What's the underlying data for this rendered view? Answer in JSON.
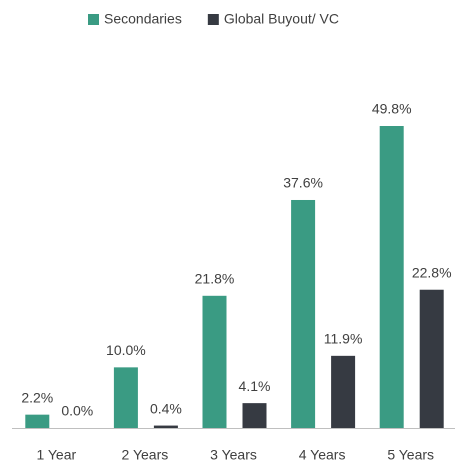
{
  "chart_data": {
    "type": "bar",
    "categories": [
      "1 Year",
      "2 Years",
      "3 Years",
      "4 Years",
      "5 Years"
    ],
    "series": [
      {
        "name": "Secondaries",
        "color": "#3a9b83",
        "values": [
          2.2,
          10.0,
          21.8,
          37.6,
          49.8
        ],
        "value_labels": [
          "2.2%",
          "10.0%",
          "21.8%",
          "37.6%",
          "49.8%"
        ]
      },
      {
        "name": "Global Buyout/ VC",
        "color": "#363a42",
        "values": [
          0.0,
          0.4,
          4.1,
          11.9,
          22.8
        ],
        "value_labels": [
          "0.0%",
          "0.4%",
          "4.1%",
          "11.9%",
          "22.8%"
        ]
      }
    ],
    "legend": "top"
  }
}
